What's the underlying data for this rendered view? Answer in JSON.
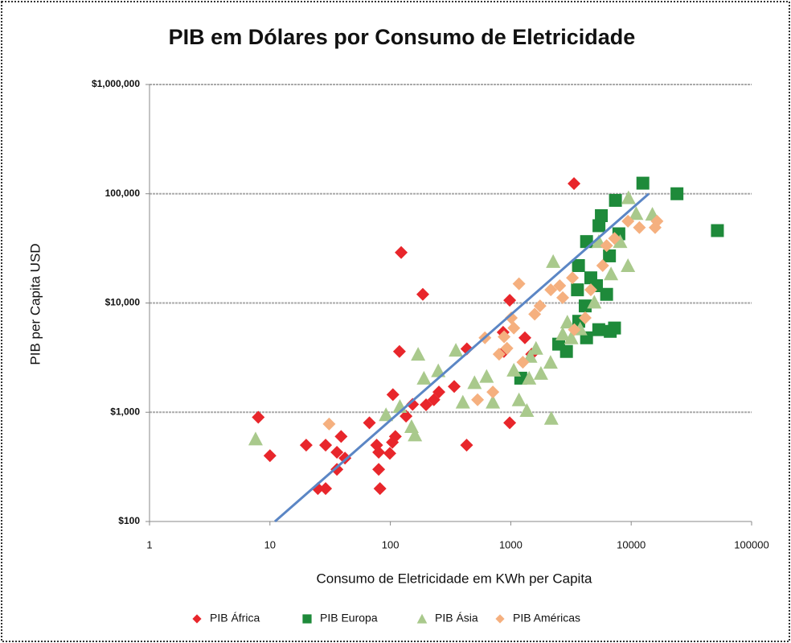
{
  "chart_data": {
    "type": "scatter",
    "title": "PIB em Dólares por Consumo de Eletricidade",
    "x_label": "Consumo de Eletricidade em KWh per Capita",
    "y_label": "PIB per Capita USD",
    "x_log": true,
    "y_log": true,
    "grid": true,
    "legend": "bottom",
    "xlim": [
      1,
      100000
    ],
    "ylim": [
      100,
      1000000
    ],
    "xticks": [
      1,
      10,
      100,
      1000,
      10000,
      100000
    ],
    "yticks": [
      {
        "value": 100,
        "label": "$100"
      },
      {
        "value": 1000,
        "label": "$1,000"
      },
      {
        "value": 10000,
        "label": "$10,000"
      },
      {
        "value": 100000,
        "label": "100,000"
      },
      {
        "value": 1000000,
        "label": "$1,000,000"
      }
    ],
    "series": [
      {
        "name": "PIB África",
        "color": "#e8262b",
        "marker": "diamond",
        "x": [
          8,
          10,
          20,
          29,
          25,
          29,
          39,
          36,
          42,
          36,
          67,
          77,
          80,
          80,
          82,
          104,
          99,
          110,
          105,
          119,
          123,
          186,
          135,
          153,
          198,
          230,
          253,
          339,
          432,
          430,
          877,
          864,
          980,
          980,
          1490,
          1310,
          3350
        ],
        "values": [
          900,
          400,
          500,
          500,
          200,
          200,
          600,
          430,
          380,
          300,
          800,
          500,
          430,
          300,
          200,
          530,
          420,
          600,
          1450,
          3600,
          29000,
          12000,
          920,
          1180,
          1170,
          1300,
          1530,
          1720,
          3800,
          500,
          3600,
          5400,
          10600,
          800,
          3400,
          4800,
          124000
        ]
      },
      {
        "name": "PIB Europa",
        "color": "#1e8a3a",
        "marker": "square",
        "x": [
          12500,
          24000,
          52000,
          7400,
          5650,
          5400,
          4260,
          3650,
          4620,
          5150,
          6250,
          4150,
          3670,
          5380,
          7270,
          6700,
          4260,
          2900,
          2500,
          1210,
          7900,
          6600,
          3580
        ],
        "values": [
          125000,
          100000,
          46000,
          87000,
          63000,
          51000,
          36500,
          22000,
          17000,
          14400,
          12000,
          9400,
          6800,
          5700,
          5900,
          5500,
          4800,
          3600,
          4200,
          2050,
          43000,
          27000,
          13200
        ]
      },
      {
        "name": "PIB Ásia",
        "color": "#a9c98c",
        "marker": "triangle",
        "x": [
          7.6,
          92,
          170,
          190,
          250,
          160,
          150,
          120,
          350,
          400,
          500,
          630,
          710,
          1170,
          1360,
          1060,
          1450,
          1620,
          2140,
          2170,
          2250,
          2700,
          2950,
          3180,
          4940,
          8100,
          9500,
          11000,
          15000,
          9400,
          6800,
          5380,
          3770,
          1780,
          1420
        ],
        "values": [
          570,
          950,
          3400,
          2050,
          2400,
          620,
          740,
          1130,
          3700,
          1240,
          1870,
          2130,
          1240,
          1300,
          1040,
          2430,
          3250,
          3850,
          2870,
          880,
          24000,
          5200,
          6700,
          4800,
          10200,
          36500,
          92000,
          66000,
          65000,
          22000,
          18500,
          36500,
          5800,
          2270,
          2050
        ]
      },
      {
        "name": "PIB Américas",
        "color": "#f5b07f",
        "marker": "diamond",
        "x": [
          31,
          1170,
          610,
          800,
          930,
          880,
          1010,
          1580,
          1750,
          2150,
          2550,
          3250,
          4150,
          4620,
          5800,
          6250,
          7270,
          9400,
          11700,
          15800,
          16400,
          3370,
          1060,
          530,
          710,
          1260,
          2700
        ],
        "values": [
          780,
          15000,
          4800,
          3400,
          3850,
          4900,
          7300,
          7900,
          9400,
          13200,
          14400,
          17000,
          7300,
          13200,
          22000,
          33500,
          39000,
          56000,
          49000,
          49000,
          56000,
          5700,
          5900,
          1300,
          1530,
          2870,
          11200
        ]
      }
    ],
    "trendline": {
      "color": "#5b86c5",
      "x": [
        11,
        14000
      ],
      "values": [
        100,
        100000
      ]
    }
  }
}
